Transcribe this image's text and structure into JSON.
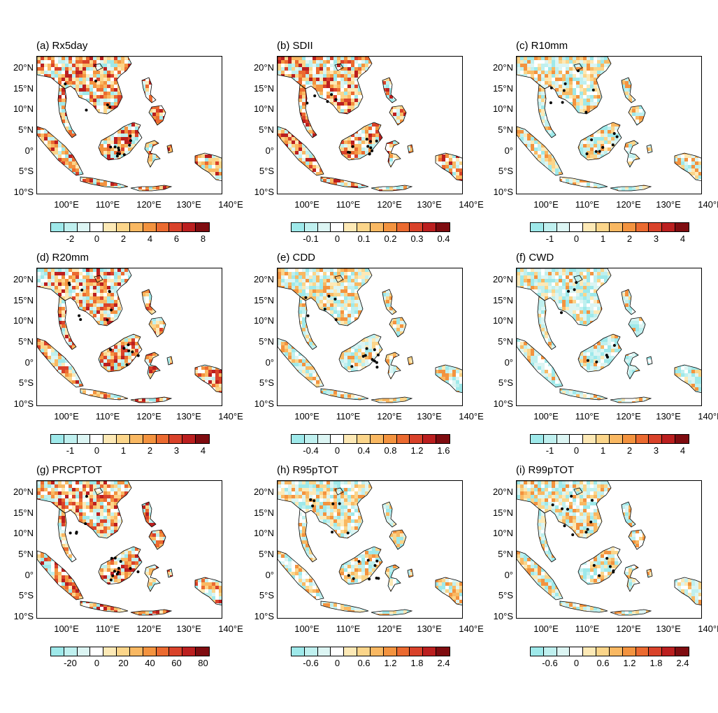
{
  "colorbar_palette": [
    "#9ee9ea",
    "#bff0ef",
    "#dcf5f3",
    "#ffffff",
    "#fde9b6",
    "#fbd58a",
    "#f9b862",
    "#f3933f",
    "#eb6a30",
    "#d9422a",
    "#bb1f1f",
    "#7f0c10"
  ],
  "lat_labels": [
    "20°N",
    "15°N",
    "10°N",
    "5°N",
    "0°",
    "5°S",
    "10°S"
  ],
  "lon_labels": [
    "100°E",
    "110°E",
    "120°E",
    "130°E",
    "140°E"
  ],
  "panels": [
    {
      "title": "(a) Rx5day",
      "ticks": [
        "-2",
        "0",
        "2",
        "4",
        "6",
        "8"
      ],
      "pattern": "wet"
    },
    {
      "title": "(b) SDII",
      "ticks": [
        "-0.1",
        "0",
        "0.1",
        "0.2",
        "0.3",
        "0.4"
      ],
      "pattern": "wet"
    },
    {
      "title": "(c) R10mm",
      "ticks": [
        "-1",
        "0",
        "1",
        "2",
        "3",
        "4"
      ],
      "pattern": "mixed"
    },
    {
      "title": "(d) R20mm",
      "ticks": [
        "-1",
        "0",
        "1",
        "2",
        "3",
        "4"
      ],
      "pattern": "wet"
    },
    {
      "title": "(e) CDD",
      "ticks": [
        "-0.4",
        "0",
        "0.4",
        "0.8",
        "1.2",
        "1.6"
      ],
      "pattern": "mixed"
    },
    {
      "title": "(f) CWD",
      "ticks": [
        "-1",
        "0",
        "1",
        "2",
        "3",
        "4"
      ],
      "pattern": "dry"
    },
    {
      "title": "(g) PRCPTOT",
      "ticks": [
        "-20",
        "0",
        "20",
        "40",
        "60",
        "80"
      ],
      "pattern": "wet"
    },
    {
      "title": "(h) R95pTOT",
      "ticks": [
        "-0.6",
        "0",
        "0.6",
        "1.2",
        "1.8",
        "2.4"
      ],
      "pattern": "mixed"
    },
    {
      "title": "(i) R99pTOT",
      "ticks": [
        "-0.6",
        "0",
        "0.6",
        "1.2",
        "1.8",
        "2.4"
      ],
      "pattern": "mixed"
    }
  ]
}
